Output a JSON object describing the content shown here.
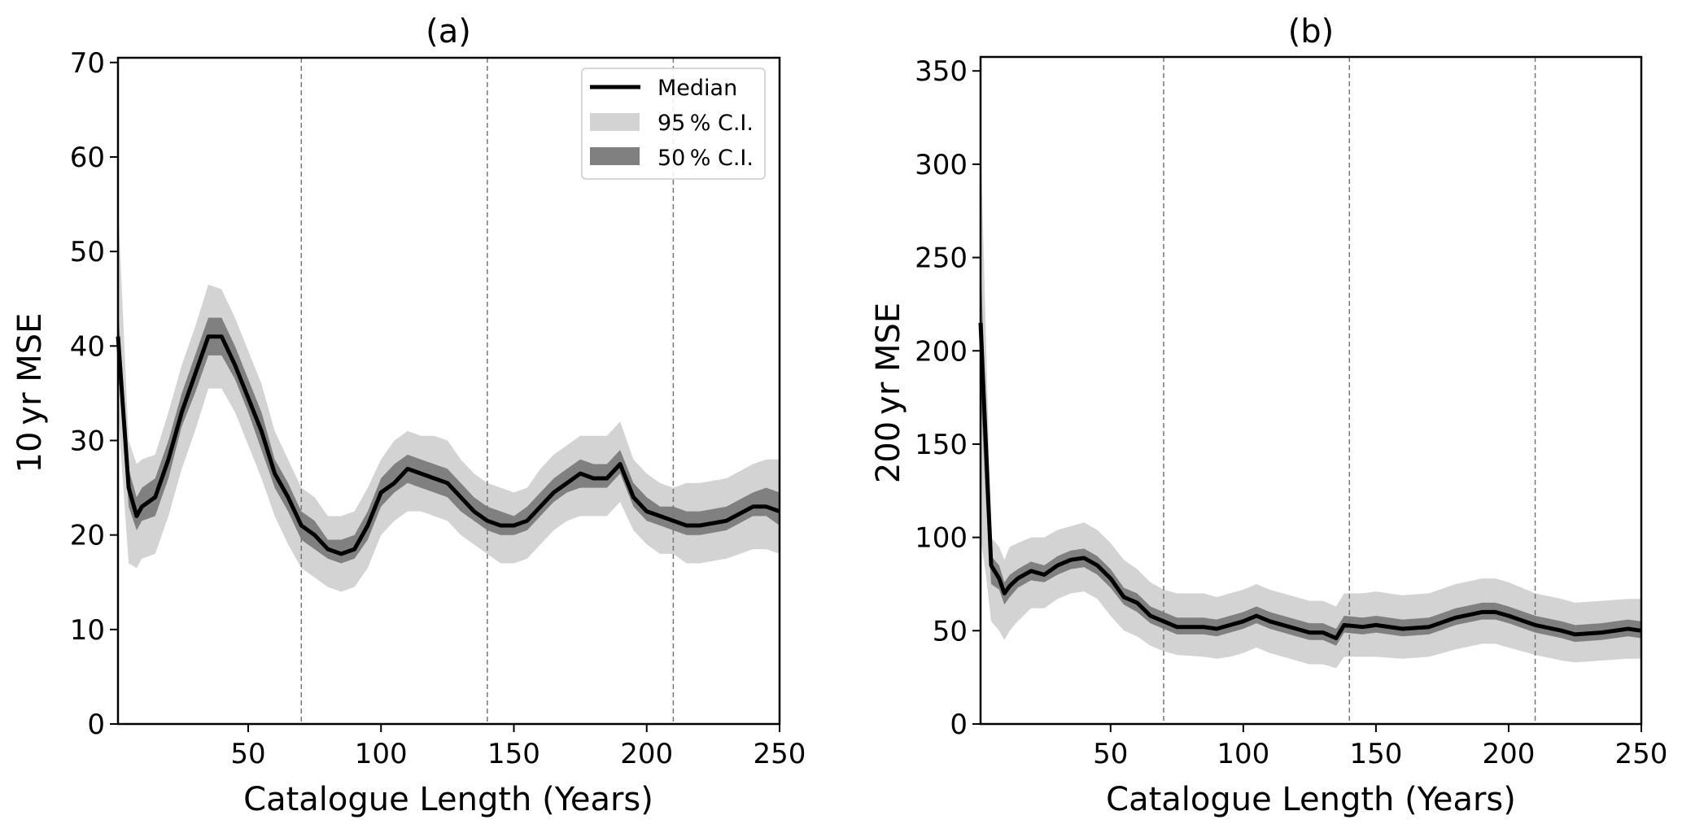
{
  "colors": {
    "median": "#000000",
    "ci95": "#d3d3d3",
    "ci50": "#808080",
    "vline": "#777777",
    "axis": "#000000",
    "legend_border": "#cccccc"
  },
  "legend": {
    "placement": "top-right (panel a)",
    "items": [
      {
        "label": "Median",
        "kind": "line"
      },
      {
        "label": "95 % C.I.",
        "kind": "patch-light"
      },
      {
        "label": "50 % C.I.",
        "kind": "patch-dark"
      }
    ]
  },
  "chart_data": [
    {
      "type": "area",
      "title": "(a)",
      "xlabel": "Catalogue Length (Years)",
      "ylabel": "10 yr MSE",
      "xlim": [
        1,
        250
      ],
      "ylim": [
        0,
        70.5
      ],
      "xticks": [
        50,
        100,
        150,
        200,
        250
      ],
      "yticks": [
        0,
        10,
        20,
        30,
        40,
        50,
        60,
        70
      ],
      "vlines": [
        70,
        140,
        210
      ],
      "grid": false,
      "legend": "top-right",
      "x": [
        1,
        5,
        8,
        10,
        15,
        20,
        25,
        30,
        35,
        40,
        45,
        50,
        55,
        60,
        65,
        70,
        75,
        80,
        85,
        90,
        95,
        100,
        105,
        110,
        115,
        120,
        125,
        130,
        135,
        140,
        145,
        150,
        155,
        160,
        165,
        170,
        175,
        180,
        185,
        190,
        195,
        200,
        205,
        210,
        215,
        220,
        230,
        240,
        245,
        250
      ],
      "series": [
        {
          "name": "Median",
          "values": [
            41,
            25,
            22,
            23,
            24,
            28,
            33,
            37,
            41,
            41,
            38,
            34.5,
            31,
            26.5,
            24,
            21,
            20,
            18.5,
            18,
            18.5,
            21,
            24.5,
            25.5,
            27,
            26.5,
            26,
            25.5,
            24,
            22.5,
            21.5,
            21,
            21,
            21.5,
            23,
            24.5,
            25.5,
            26.5,
            26,
            26,
            27.5,
            24,
            22.5,
            22,
            21.5,
            21,
            21,
            21.5,
            23,
            23,
            22.5
          ]
        },
        {
          "name": "95% C.I. lower",
          "values": [
            33,
            17,
            16.5,
            17.5,
            18,
            22,
            27,
            31,
            35.5,
            35.5,
            33,
            29.5,
            26,
            22,
            19,
            16.5,
            15.5,
            14.5,
            14,
            14.5,
            16.5,
            20,
            21.5,
            22.5,
            22.5,
            22,
            21.5,
            20,
            19,
            18,
            17,
            17,
            17.5,
            19,
            20.5,
            21.5,
            22,
            22,
            22,
            23.5,
            20.5,
            19,
            18,
            18,
            17,
            17,
            17.5,
            18.5,
            18.5,
            18
          ]
        },
        {
          "name": "95% C.I. upper",
          "values": [
            55,
            30,
            27.5,
            28,
            28.5,
            33,
            38,
            42,
            46.5,
            46,
            43,
            39.5,
            36,
            31,
            28,
            25,
            24,
            22,
            22,
            22.5,
            25,
            28,
            30,
            31,
            30.5,
            30.5,
            30,
            28,
            26.5,
            25.5,
            25,
            24.5,
            25,
            27,
            28.5,
            29.5,
            30.5,
            30.5,
            30.5,
            32,
            28,
            26.5,
            25.5,
            25,
            25.5,
            25.5,
            26,
            27.5,
            28,
            28
          ]
        },
        {
          "name": "50% C.I. lower",
          "values": [
            38,
            23,
            20.5,
            21.5,
            22,
            26,
            31.5,
            35,
            39,
            39,
            36.5,
            33,
            29,
            25,
            22.5,
            19.5,
            18.5,
            17.5,
            17,
            17.5,
            19.5,
            23,
            24.5,
            25.5,
            25,
            24.5,
            24,
            22.5,
            21.5,
            20.5,
            20,
            20,
            20.5,
            22,
            23.5,
            24.5,
            25,
            25,
            25,
            26.5,
            23,
            21.5,
            21,
            20.5,
            20,
            20,
            20.5,
            22,
            22,
            21
          ]
        },
        {
          "name": "50% C.I. upper",
          "values": [
            44,
            27,
            24,
            25,
            26,
            30,
            35,
            39,
            43,
            43,
            40,
            36.5,
            33,
            28,
            25.5,
            22.5,
            21.5,
            19.5,
            19.5,
            20,
            22.5,
            26,
            27.5,
            28.5,
            28,
            27.5,
            27,
            25.5,
            24,
            23,
            22.5,
            22,
            23,
            24.5,
            26,
            27,
            28,
            27.5,
            27.5,
            29,
            25.5,
            24,
            23,
            23,
            22.5,
            22.5,
            23,
            24.5,
            25,
            24.5
          ]
        }
      ]
    },
    {
      "type": "area",
      "title": "(b)",
      "xlabel": "Catalogue Length (Years)",
      "ylabel": "200 yr MSE",
      "xlim": [
        1,
        250
      ],
      "ylim": [
        0,
        357.5
      ],
      "xticks": [
        50,
        100,
        150,
        200,
        250
      ],
      "yticks": [
        0,
        50,
        100,
        150,
        200,
        250,
        300,
        350
      ],
      "vlines": [
        70,
        140,
        210
      ],
      "grid": false,
      "x": [
        1,
        3,
        5,
        8,
        10,
        12,
        15,
        20,
        25,
        30,
        35,
        40,
        45,
        50,
        55,
        60,
        65,
        70,
        75,
        85,
        90,
        95,
        100,
        105,
        110,
        120,
        125,
        130,
        135,
        138,
        145,
        150,
        160,
        170,
        180,
        190,
        195,
        200,
        210,
        220,
        225,
        235,
        245,
        250
      ],
      "series": [
        {
          "name": "Median",
          "values": [
            215,
            150,
            85,
            78,
            70,
            74,
            78,
            82,
            80,
            85,
            88,
            89,
            85,
            78,
            68,
            65,
            58,
            55,
            52,
            52,
            51,
            53,
            55,
            58,
            55,
            51,
            49,
            49,
            46,
            53,
            52,
            53,
            51,
            52,
            57,
            60,
            60,
            58,
            53,
            50,
            48,
            49,
            51,
            50
          ]
        },
        {
          "name": "95% C.I. lower",
          "values": [
            100,
            80,
            55,
            50,
            45,
            50,
            55,
            62,
            62,
            67,
            70,
            71,
            67,
            58,
            50,
            47,
            42,
            39,
            37,
            36,
            35,
            36,
            38,
            41,
            38,
            34,
            32,
            32,
            30,
            36,
            36,
            36,
            35,
            36,
            40,
            43,
            43,
            41,
            37,
            34,
            33,
            34,
            35,
            35
          ]
        },
        {
          "name": "95% C.I. upper",
          "values": [
            315,
            210,
            100,
            95,
            88,
            95,
            97,
            100,
            100,
            104,
            106,
            108,
            104,
            97,
            88,
            83,
            76,
            72,
            70,
            70,
            68,
            70,
            72,
            75,
            72,
            68,
            66,
            66,
            63,
            70,
            70,
            71,
            69,
            70,
            75,
            78,
            78,
            76,
            70,
            67,
            65,
            66,
            67,
            67
          ]
        },
        {
          "name": "50% C.I. lower",
          "values": [
            180,
            120,
            75,
            72,
            64,
            68,
            73,
            77,
            76,
            80,
            83,
            84,
            80,
            73,
            64,
            60,
            54,
            51,
            48,
            48,
            47,
            49,
            51,
            54,
            51,
            47,
            45,
            45,
            42,
            49,
            48,
            49,
            47,
            48,
            53,
            56,
            56,
            54,
            49,
            46,
            44,
            45,
            47,
            46
          ]
        },
        {
          "name": "50% C.I. upper",
          "values": [
            250,
            170,
            90,
            85,
            76,
            80,
            83,
            87,
            85,
            90,
            93,
            94,
            90,
            83,
            73,
            70,
            63,
            60,
            57,
            57,
            56,
            58,
            60,
            63,
            60,
            56,
            54,
            54,
            51,
            58,
            57,
            58,
            56,
            57,
            62,
            65,
            65,
            63,
            58,
            55,
            53,
            54,
            56,
            55
          ]
        }
      ]
    }
  ]
}
